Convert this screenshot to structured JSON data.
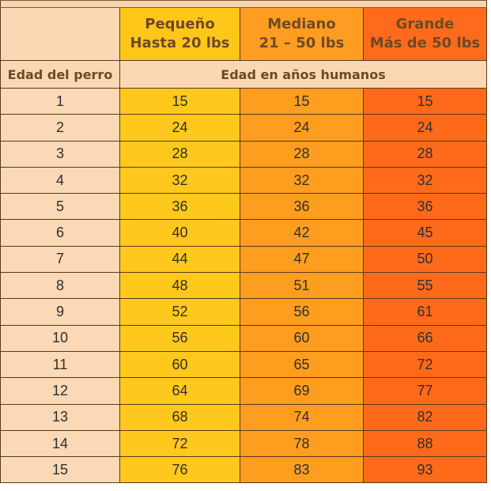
{
  "headers": {
    "small": {
      "line1": "Pequeño",
      "line2": "Hasta 20 lbs"
    },
    "medium": {
      "line1": "Mediano",
      "line2": "21 – 50 lbs"
    },
    "large": {
      "line1": "Grande",
      "line2": "Más de 50 lbs"
    },
    "dog_age": "Edad del perro",
    "human_age": "Edad en años humanos"
  },
  "rows": [
    {
      "age": "1",
      "small": "15",
      "medium": "15",
      "large": "15"
    },
    {
      "age": "2",
      "small": "24",
      "medium": "24",
      "large": "24"
    },
    {
      "age": "3",
      "small": "28",
      "medium": "28",
      "large": "28"
    },
    {
      "age": "4",
      "small": "32",
      "medium": "32",
      "large": "32"
    },
    {
      "age": "5",
      "small": "36",
      "medium": "36",
      "large": "36"
    },
    {
      "age": "6",
      "small": "40",
      "medium": "42",
      "large": "45"
    },
    {
      "age": "7",
      "small": "44",
      "medium": "47",
      "large": "50"
    },
    {
      "age": "8",
      "small": "48",
      "medium": "51",
      "large": "55"
    },
    {
      "age": "9",
      "small": "52",
      "medium": "56",
      "large": "61"
    },
    {
      "age": "10",
      "small": "56",
      "medium": "60",
      "large": "66"
    },
    {
      "age": "11",
      "small": "60",
      "medium": "65",
      "large": "72"
    },
    {
      "age": "12",
      "small": "64",
      "medium": "69",
      "large": "77"
    },
    {
      "age": "13",
      "small": "68",
      "medium": "74",
      "large": "82"
    },
    {
      "age": "14",
      "small": "72",
      "medium": "78",
      "large": "88"
    },
    {
      "age": "15",
      "small": "76",
      "medium": "83",
      "large": "93"
    }
  ],
  "colors": {
    "small": "#ffc81c",
    "medium": "#ff9d1f",
    "large": "#ff6a1a",
    "age_column": "#fbd9b6"
  }
}
